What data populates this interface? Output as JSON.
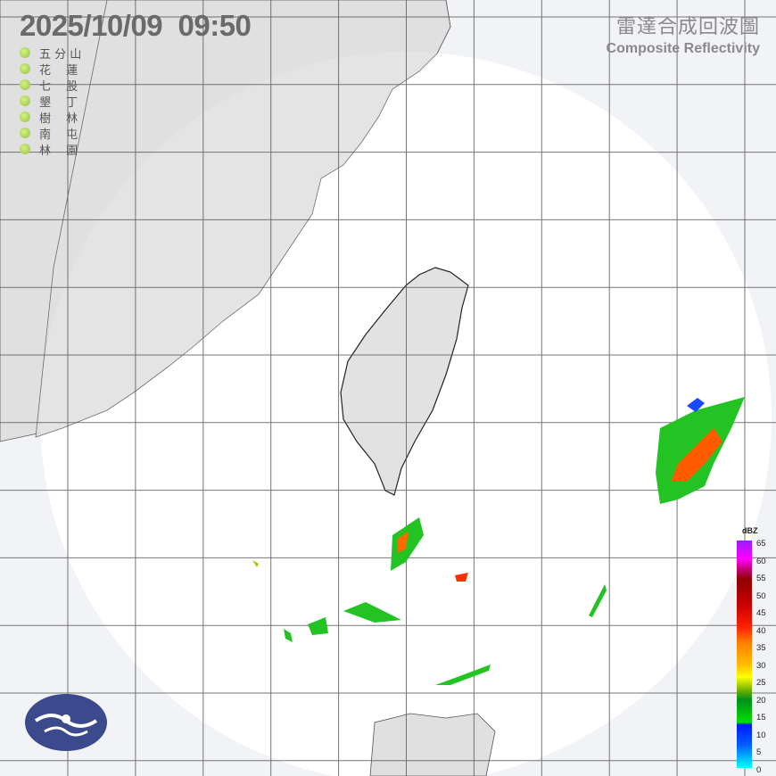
{
  "header": {
    "timestamp": "2025/10/09  09:50"
  },
  "title": {
    "zh": "雷達合成回波圖",
    "en": "Composite Reflectivity"
  },
  "stations": [
    {
      "label": "五 分 山"
    },
    {
      "label": "花　 蓮"
    },
    {
      "label": "七　 股"
    },
    {
      "label": "墾　 丁"
    },
    {
      "label": "樹　 林"
    },
    {
      "label": "南　 屯"
    },
    {
      "label": "林　 園"
    }
  ],
  "scale": {
    "unit": "dBZ",
    "ticks": [
      "65",
      "60",
      "55",
      "50",
      "45",
      "40",
      "35",
      "30",
      "25",
      "20",
      "15",
      "10",
      "5",
      "0"
    ]
  },
  "colors": {
    "land": "#e0e0e0",
    "sea": "#f2f3f7",
    "radar_coverage": "#ffffff",
    "grid": "#555555",
    "logo": "#3b4a8c",
    "station_dot": "#9ccc45"
  }
}
